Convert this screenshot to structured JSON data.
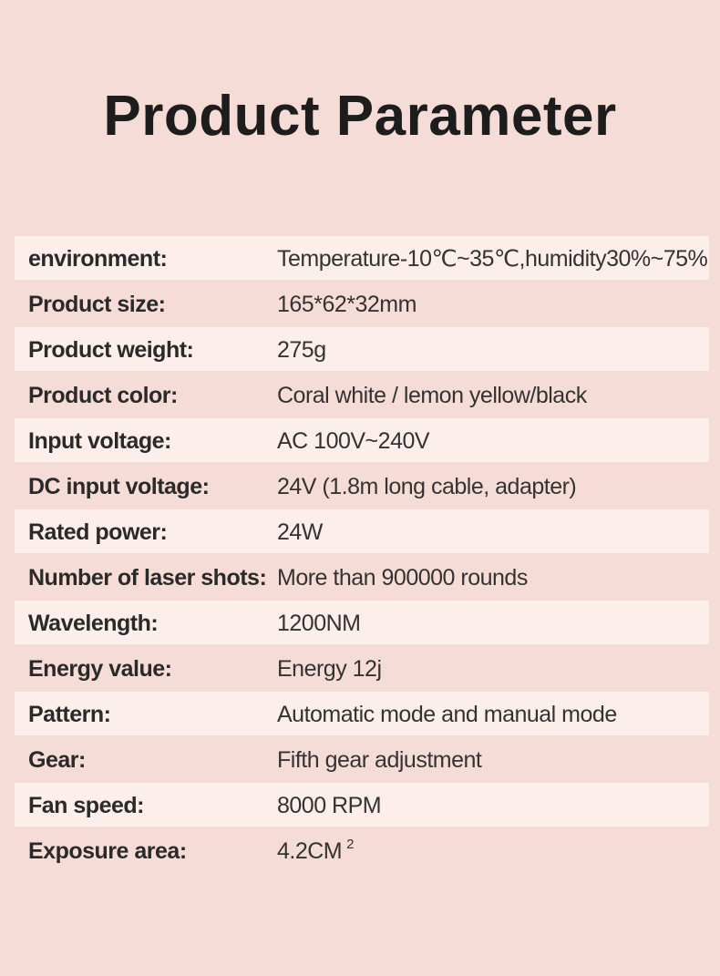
{
  "title": "Product Parameter",
  "accent_colors": {
    "background": "#f6dcd7",
    "row_shade": "#fbeeeb",
    "text": "#2b2b2b"
  },
  "parameters": [
    {
      "label": "environment:",
      "value": "Temperature-10℃~35℃,humidity30%~75%"
    },
    {
      "label": "Product size:",
      "value": "165*62*32mm"
    },
    {
      "label": "Product weight:",
      "value": "275g"
    },
    {
      "label": "Product color:",
      "value": "Coral white / lemon yellow/black"
    },
    {
      "label": "Input voltage:",
      "value": "AC 100V~240V"
    },
    {
      "label": "DC input voltage:",
      "value": "24V (1.8m long cable, adapter)"
    },
    {
      "label": "Rated power:",
      "value": "24W"
    },
    {
      "label": "Number of laser shots:",
      "value": "More than 900000 rounds"
    },
    {
      "label": "Wavelength:",
      "value": "1200NM"
    },
    {
      "label": "Energy value:",
      "value": "Energy 12j"
    },
    {
      "label": "Pattern:",
      "value": "Automatic mode and manual mode"
    },
    {
      "label": "Gear:",
      "value": "Fifth gear adjustment"
    },
    {
      "label": "Fan speed:",
      "value": "8000 RPM"
    },
    {
      "label": "Exposure area:",
      "value": "4.2CM",
      "superscript": "2"
    }
  ]
}
